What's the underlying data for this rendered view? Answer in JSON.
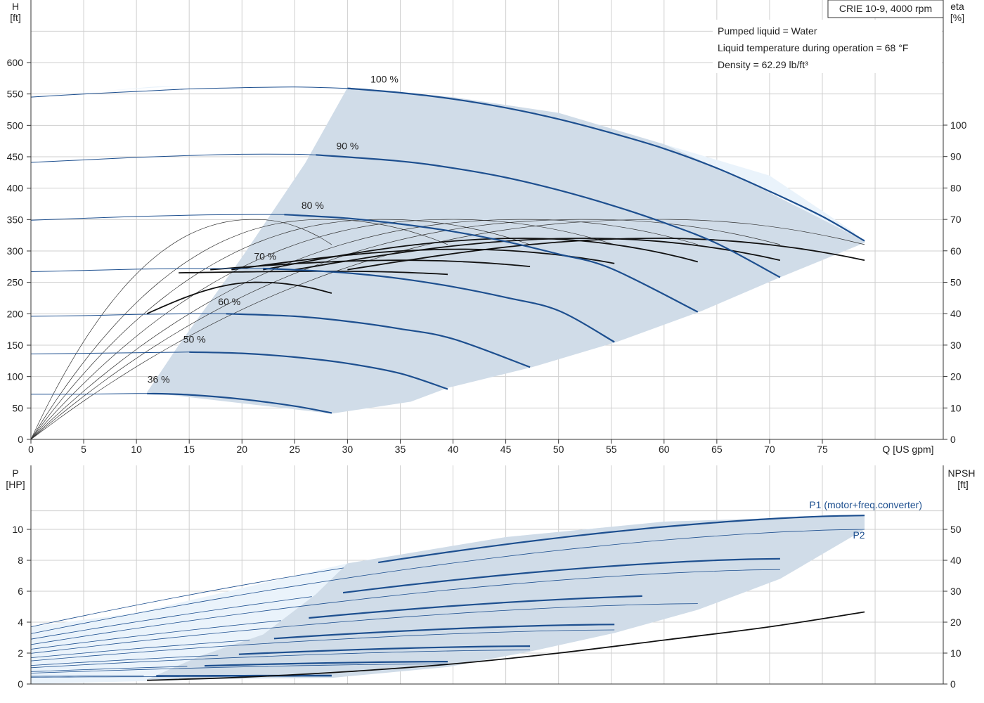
{
  "chart_data": [
    {
      "type": "line",
      "id": "head_efficiency",
      "title_box": "CRIE 10-9, 4000 rpm",
      "info_lines": [
        "Pumped liquid = Water",
        "Liquid temperature during operation = 68 °F",
        "Density = 62.29 lb/ft³"
      ],
      "xlabel": "Q [US gpm]",
      "ylabel_left": [
        "H",
        "[ft]"
      ],
      "ylabel_right": [
        "eta",
        "[%]"
      ],
      "xlim": [
        0,
        82
      ],
      "ylim_left": [
        0,
        650
      ],
      "ylim_right": [
        0,
        130
      ],
      "x_ticks": [
        0,
        5,
        10,
        15,
        20,
        25,
        30,
        35,
        40,
        45,
        50,
        55,
        60,
        65,
        70,
        75
      ],
      "y_ticks_left": [
        0,
        50,
        100,
        150,
        200,
        250,
        300,
        350,
        400,
        450,
        500,
        550,
        600
      ],
      "y_ticks_right": [
        0,
        10,
        20,
        30,
        40,
        50,
        60,
        70,
        80,
        90,
        100
      ],
      "grid": true,
      "colors": {
        "head_curve": "#1d4f8f",
        "region_light": "#eaf3fb",
        "region_dark": "#d0dce8",
        "eff_curve": "#111111"
      },
      "region_light": {
        "x": [
          0,
          0,
          3,
          8,
          11.5,
          14,
          20,
          28.5,
          36,
          39.5,
          47.5,
          55.5,
          63.5,
          71,
          77,
          79,
          79,
          78,
          70,
          60,
          40,
          30,
          20,
          12,
          0
        ],
        "y": [
          0,
          545,
          550,
          556,
          560,
          562,
          563,
          560,
          545,
          537,
          512,
          485,
          444,
          387,
          328,
          312,
          313,
          330,
          420,
          470,
          530,
          560,
          563,
          562,
          545
        ]
      },
      "region_dark": {
        "x": [
          30,
          26,
          20,
          14,
          12,
          11,
          12,
          28.5,
          36,
          39.5,
          47.5,
          55.5,
          63.5,
          71,
          79,
          79,
          75,
          68,
          60,
          50,
          40,
          30
        ],
        "y": [
          560,
          440,
          290,
          150,
          100,
          75,
          73,
          41,
          60,
          82,
          115,
          155,
          204,
          258,
          313,
          316,
          350,
          410,
          470,
          520,
          545,
          560
        ]
      },
      "series": [
        {
          "name": "100 %",
          "label_at": [
            33.5,
            568
          ],
          "thin": {
            "x": [
              0,
              5,
              10,
              15,
              20,
              25,
              30
            ],
            "y": [
              545,
              550,
              554,
              558,
              560,
              561,
              559
            ]
          },
          "bold": {
            "x": [
              30,
              35,
              40,
              45,
              50,
              55,
              60,
              65,
              70,
              75,
              79
            ],
            "y": [
              559,
              552,
              542,
              528,
              510,
              488,
              463,
              432,
              395,
              355,
              316
            ]
          }
        },
        {
          "name": "90 %",
          "label_at": [
            30,
            462
          ],
          "thin": {
            "x": [
              0,
              5,
              10,
              15,
              20,
              25,
              27
            ],
            "y": [
              441,
              445,
              449,
              452,
              454,
              454,
              453
            ]
          },
          "bold": {
            "x": [
              27,
              35,
              40,
              45,
              50,
              55,
              60,
              65,
              71
            ],
            "y": [
              453,
              443,
              432,
              417,
              397,
              373,
              345,
              312,
              258
            ]
          }
        },
        {
          "name": "80 %",
          "label_at": [
            26.7,
            367
          ],
          "thin": {
            "x": [
              0,
              5,
              10,
              15,
              20,
              24
            ],
            "y": [
              349,
              352,
              355,
              357,
              358,
              358
            ]
          },
          "bold": {
            "x": [
              24,
              30,
              35,
              40,
              45,
              50,
              55,
              63.2
            ],
            "y": [
              358,
              352,
              343,
              331,
              315,
              295,
              272,
              203
            ]
          }
        },
        {
          "name": "70 %",
          "label_at": [
            22.2,
            286
          ],
          "thin": {
            "x": [
              0,
              5,
              10,
              15,
              20,
              22
            ],
            "y": [
              267,
              269,
              271,
              272,
              272,
              272
            ]
          },
          "bold": {
            "x": [
              22,
              25,
              30,
              35,
              40,
              45,
              50,
              55.3
            ],
            "y": [
              272,
              270,
              265,
              256,
              243,
              226,
              205,
              155
            ]
          }
        },
        {
          "name": "60 %",
          "label_at": [
            18.8,
            214
          ],
          "thin": {
            "x": [
              0,
              5,
              10,
              15,
              18.5
            ],
            "y": [
              196,
              197,
              199,
              200,
              200
            ]
          },
          "bold": {
            "x": [
              18.5,
              25,
              30,
              35,
              40,
              47.3
            ],
            "y": [
              200,
              196,
              188,
              176,
              160,
              115
            ]
          }
        },
        {
          "name": "50 %",
          "label_at": [
            15.5,
            154
          ],
          "thin": {
            "x": [
              0,
              5,
              10,
              15
            ],
            "y": [
              136,
              137,
              138,
              139
            ]
          },
          "bold": {
            "x": [
              15,
              20,
              25,
              30,
              35,
              39.5
            ],
            "y": [
              139,
              137,
              131,
              121,
              105,
              80
            ]
          }
        },
        {
          "name": "36 %",
          "label_at": [
            12.1,
            90
          ],
          "thin": {
            "x": [
              0,
              5,
              10,
              11
            ],
            "y": [
              72,
              72,
              73,
              73
            ]
          },
          "bold": {
            "x": [
              11,
              15,
              20,
              25,
              28.5
            ],
            "y": [
              73,
              71,
              64,
              53,
              42
            ]
          }
        }
      ],
      "efficiency_series": [
        {
          "peak_x": 21.3,
          "end_x": 28.5,
          "end_y": 46.5,
          "start_x": 11
        },
        {
          "peak_x": 28,
          "end_x": 39.5,
          "end_y": 52.5,
          "start_x": 14
        },
        {
          "peak_x": 33.5,
          "end_x": 47.3,
          "end_y": 55,
          "start_x": 17
        },
        {
          "peak_x": 40,
          "end_x": 55.3,
          "end_y": 56,
          "start_x": 19
        },
        {
          "peak_x": 47,
          "end_x": 63.2,
          "end_y": 56.5,
          "start_x": 22
        },
        {
          "peak_x": 53,
          "end_x": 71,
          "end_y": 57,
          "start_x": 25
        },
        {
          "peak_x": 60,
          "end_x": 79,
          "end_y": 57,
          "start_x": 30
        }
      ],
      "eta_peak": 70,
      "eta_bold_peak": 64
    },
    {
      "type": "line",
      "id": "power_npsh",
      "ylabel_left": [
        "P",
        "[HP]"
      ],
      "ylabel_right": [
        "NPSH",
        "[ft]"
      ],
      "xlim": [
        0,
        82
      ],
      "ylim_left": [
        0,
        12
      ],
      "ylim_right": [
        0,
        60
      ],
      "y_ticks_left": [
        0,
        2,
        4,
        6,
        8,
        10
      ],
      "y_ticks_right": [
        0,
        10,
        20,
        30,
        40,
        50
      ],
      "grid": true,
      "labels": {
        "p1": "P1 (motor+freq.converter)",
        "p2": "P2"
      },
      "p1_series": [
        {
          "start": [
            0,
            3.7
          ],
          "bold_from": 30,
          "end": [
            79,
            10.9
          ]
        },
        {
          "start": [
            0,
            2.9
          ],
          "bold_from": 27,
          "end": [
            71,
            8.1
          ]
        },
        {
          "start": [
            0,
            2.25
          ],
          "bold_from": 24,
          "end": [
            63.2,
            5.75
          ]
        },
        {
          "start": [
            0,
            1.7
          ],
          "bold_from": 22,
          "end": [
            55.3,
            3.85
          ]
        },
        {
          "start": [
            0,
            1.2
          ],
          "bold_from": 18.5,
          "end": [
            47.3,
            2.45
          ]
        },
        {
          "start": [
            0,
            0.8
          ],
          "bold_from": 15,
          "end": [
            39.5,
            1.45
          ]
        },
        {
          "start": [
            0,
            0.5
          ],
          "bold_from": 11,
          "end": [
            28.5,
            0.55
          ]
        }
      ],
      "p2_series": [
        {
          "end": [
            79,
            10.0
          ]
        },
        {
          "end": [
            71,
            7.4
          ]
        },
        {
          "end": [
            63.2,
            5.2
          ]
        },
        {
          "end": [
            55.3,
            3.5
          ]
        },
        {
          "end": [
            47.3,
            2.2
          ]
        },
        {
          "end": [
            39.5,
            1.3
          ]
        },
        {
          "end": [
            28.5,
            0.5
          ]
        }
      ],
      "npsh": {
        "x": [
          11,
          20,
          30,
          40,
          50,
          60,
          70,
          79
        ],
        "y": [
          1.2,
          2.2,
          4.0,
          6.5,
          10.0,
          14.2,
          18.5,
          23.3
        ]
      }
    }
  ]
}
